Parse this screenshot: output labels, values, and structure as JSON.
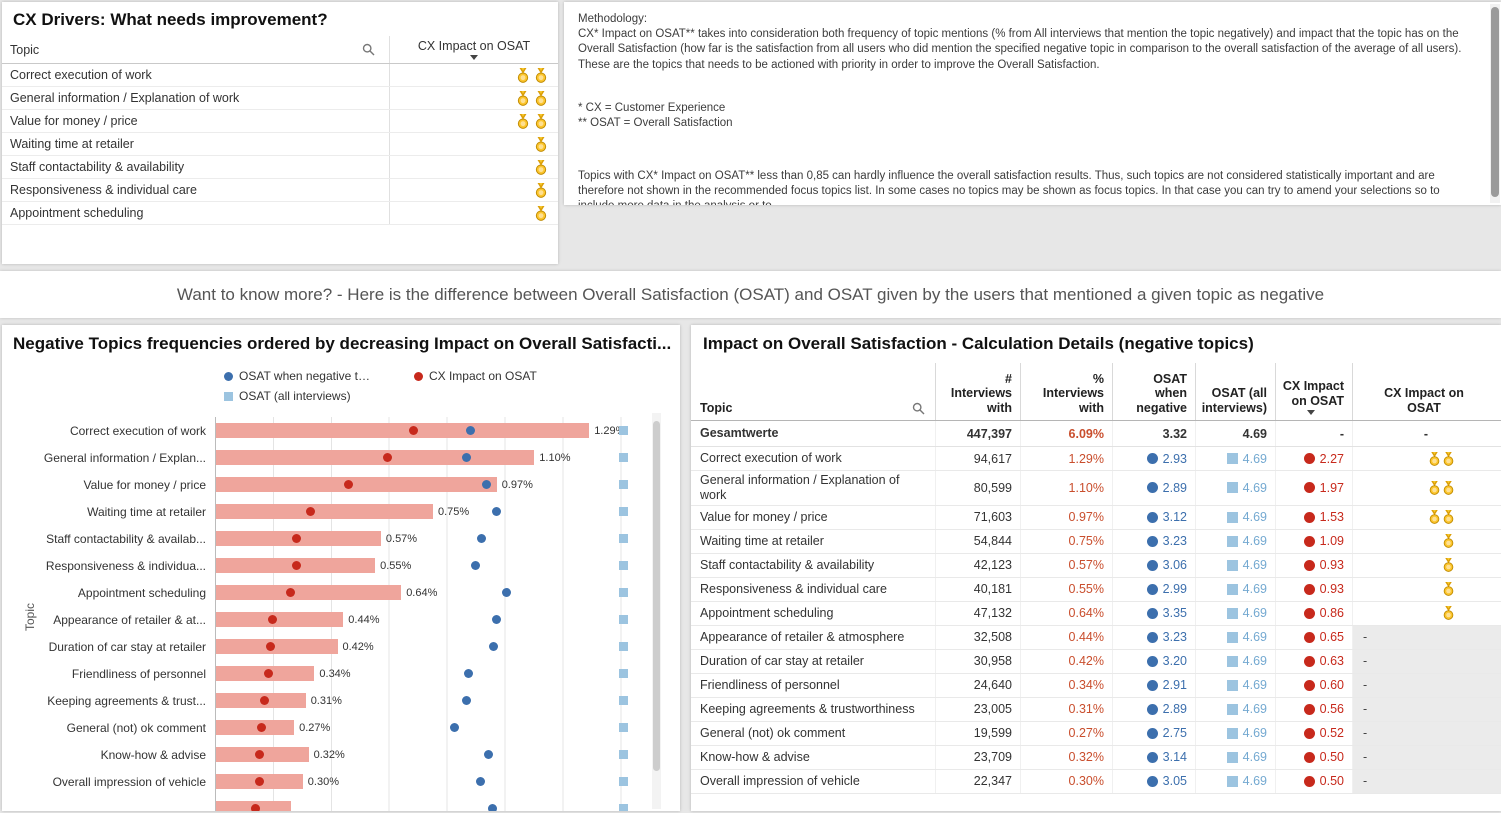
{
  "colors": {
    "bar": "#efa59c",
    "red": "#c7291c",
    "blue": "#3c6fad",
    "lblue": "#9cc4e0",
    "lblue_text": "#74a9d1",
    "orange": "#c94e2d",
    "medal": "#fcc52c"
  },
  "cx_drivers": {
    "title": "CX Drivers: What needs improvement?",
    "topic_header": "Topic",
    "impact_header": "CX Impact on OSAT",
    "rows": [
      {
        "topic": "Correct execution of work",
        "medals": 2
      },
      {
        "topic": "General information / Explanation of work",
        "medals": 2
      },
      {
        "topic": "Value for money / price",
        "medals": 2
      },
      {
        "topic": "Waiting time at retailer",
        "medals": 1
      },
      {
        "topic": "Staff contactability & availability",
        "medals": 1
      },
      {
        "topic": "Responsiveness & individual care",
        "medals": 1
      },
      {
        "topic": "Appointment scheduling",
        "medals": 1
      }
    ]
  },
  "methodology": {
    "heading": "Methodology:",
    "para1": "CX* Impact on OSAT** takes into consideration both frequency of topic mentions (% from All interviews that mention the topic negatively) and impact that the topic has on the Overall Satisfaction (how far is the satisfaction from all users who did mention the specified negative topic in comparison to the overall satisfaction of the average of all users).",
    "para2": "These are the topics that needs to be actioned with priority in order to improve the Overall Satisfaction.",
    "footnote1": "* CX = Customer Experience",
    "footnote2": "** OSAT = Overall Satisfaction",
    "para3": "Topics with CX* Impact on OSAT** less than 0,85 can hardly influence the overall satisfaction results. Thus, such topics are not considered statistically important and are therefore not shown in the recommended focus topics list. In some cases no topics may be shown as focus topics. In that case you can try to amend your selections so to include more data in the analysis or to"
  },
  "banner": "Want to know more? - Here is the difference between Overall Satisfaction (OSAT) and OSAT given by the users that mentioned a given topic as negative",
  "chart": {
    "title": "Negative Topics frequencies ordered by decreasing Impact on Overall Satisfacti...",
    "legend": [
      {
        "label": "OSAT when negative t…",
        "marker": "circle",
        "color": "#3c6fad"
      },
      {
        "label": "CX Impact on OSAT",
        "marker": "circle",
        "color": "#c7291c"
      },
      {
        "label": "OSAT (all interviews)",
        "marker": "square",
        "color": "#9cc4e0"
      }
    ]
  },
  "chart_data": {
    "type": "bar",
    "orientation": "horizontal",
    "title": "Negative Topics frequencies ordered by decreasing Impact on Overall Satisfacti...",
    "ylabel": "Topic",
    "bar_axis_max": 1.5,
    "dot_axis_max": 5,
    "grid": true,
    "legend_position": "top",
    "categories": [
      "Correct execution of work",
      "General information / Explan...",
      "Value for money / price",
      "Waiting time at retailer",
      "Staff contactability & availab...",
      "Responsiveness & individua...",
      "Appointment scheduling",
      "Appearance of retailer & at...",
      "Duration of car stay at retailer",
      "Friendliness of personnel",
      "Keeping agreements & trust...",
      "General (not) ok comment",
      "Know-how & advise",
      "Overall impression of vehicle",
      ""
    ],
    "series": [
      {
        "name": "% Interviews with",
        "unit": "%",
        "values": [
          1.29,
          1.1,
          0.97,
          0.75,
          0.57,
          0.55,
          0.64,
          0.44,
          0.42,
          0.34,
          0.31,
          0.27,
          0.32,
          0.3,
          0.26
        ],
        "labels": [
          "1.29%",
          "1.10%",
          "0.97%",
          "0.75%",
          "0.57%",
          "0.55%",
          "0.64%",
          "0.44%",
          "0.42%",
          "0.34%",
          "0.31%",
          "0.27%",
          "0.32%",
          "0.30%",
          ""
        ]
      },
      {
        "name": "CX Impact on OSAT",
        "values": [
          2.27,
          1.97,
          1.53,
          1.09,
          0.93,
          0.93,
          0.86,
          0.65,
          0.63,
          0.6,
          0.56,
          0.52,
          0.5,
          0.5,
          0.45
        ]
      },
      {
        "name": "OSAT when negative t…",
        "values": [
          2.93,
          2.89,
          3.12,
          3.23,
          3.06,
          2.99,
          3.35,
          3.23,
          3.2,
          2.91,
          2.89,
          2.75,
          3.14,
          3.05,
          3.19
        ]
      },
      {
        "name": "OSAT (all interviews)",
        "values": [
          4.69,
          4.69,
          4.69,
          4.69,
          4.69,
          4.69,
          4.69,
          4.69,
          4.69,
          4.69,
          4.69,
          4.69,
          4.69,
          4.69,
          4.69
        ]
      }
    ]
  },
  "calc_table": {
    "title": "Impact on Overall Satisfaction - Calculation Details (negative topics)",
    "headers": {
      "topic": "Topic",
      "cols": [
        {
          "key": "interviews",
          "lines": [
            "#",
            "Interviews",
            "with"
          ]
        },
        {
          "key": "pct",
          "lines": [
            "%",
            "Interviews",
            "with"
          ]
        },
        {
          "key": "osat_negative",
          "lines": [
            "OSAT",
            "when",
            "negative"
          ]
        },
        {
          "key": "osat_all",
          "lines": [
            "OSAT (all",
            "interviews)"
          ]
        },
        {
          "key": "cx_impact",
          "lines": [
            "CX Impact",
            "on OSAT"
          ],
          "sort": "desc"
        },
        {
          "key": "cx_impact_icons",
          "lines": [
            "CX Impact on",
            "OSAT"
          ],
          "center": true
        }
      ]
    },
    "totals": {
      "topic": "Gesamtwerte",
      "interviews": "447,397",
      "pct": "6.09%",
      "osat_neg": "3.32",
      "osat_all": "4.69",
      "cx_impact": "-",
      "icons": "-"
    },
    "rows": [
      {
        "topic": "Correct execution of work",
        "interviews": "94,617",
        "pct": "1.29%",
        "osat_neg": "2.93",
        "osat_all": "4.69",
        "cx_impact": "2.27",
        "medals": 2
      },
      {
        "topic": "General information / Explanation of work",
        "interviews": "80,599",
        "pct": "1.10%",
        "osat_neg": "2.89",
        "osat_all": "4.69",
        "cx_impact": "1.97",
        "medals": 2
      },
      {
        "topic": "Value for money / price",
        "interviews": "71,603",
        "pct": "0.97%",
        "osat_neg": "3.12",
        "osat_all": "4.69",
        "cx_impact": "1.53",
        "medals": 2
      },
      {
        "topic": "Waiting time at retailer",
        "interviews": "54,844",
        "pct": "0.75%",
        "osat_neg": "3.23",
        "osat_all": "4.69",
        "cx_impact": "1.09",
        "medals": 1
      },
      {
        "topic": "Staff contactability & availability",
        "interviews": "42,123",
        "pct": "0.57%",
        "osat_neg": "3.06",
        "osat_all": "4.69",
        "cx_impact": "0.93",
        "medals": 1
      },
      {
        "topic": "Responsiveness & individual care",
        "interviews": "40,181",
        "pct": "0.55%",
        "osat_neg": "2.99",
        "osat_all": "4.69",
        "cx_impact": "0.93",
        "medals": 1
      },
      {
        "topic": "Appointment scheduling",
        "interviews": "47,132",
        "pct": "0.64%",
        "osat_neg": "3.35",
        "osat_all": "4.69",
        "cx_impact": "0.86",
        "medals": 1
      },
      {
        "topic": "Appearance of retailer & atmosphere",
        "interviews": "32,508",
        "pct": "0.44%",
        "osat_neg": "3.23",
        "osat_all": "4.69",
        "cx_impact": "0.65",
        "medals": 0
      },
      {
        "topic": "Duration of car stay at retailer",
        "interviews": "30,958",
        "pct": "0.42%",
        "osat_neg": "3.20",
        "osat_all": "4.69",
        "cx_impact": "0.63",
        "medals": 0
      },
      {
        "topic": "Friendliness of personnel",
        "interviews": "24,640",
        "pct": "0.34%",
        "osat_neg": "2.91",
        "osat_all": "4.69",
        "cx_impact": "0.60",
        "medals": 0
      },
      {
        "topic": "Keeping agreements & trustworthiness",
        "interviews": "23,005",
        "pct": "0.31%",
        "osat_neg": "2.89",
        "osat_all": "4.69",
        "cx_impact": "0.56",
        "medals": 0
      },
      {
        "topic": "General (not) ok comment",
        "interviews": "19,599",
        "pct": "0.27%",
        "osat_neg": "2.75",
        "osat_all": "4.69",
        "cx_impact": "0.52",
        "medals": 0
      },
      {
        "topic": "Know-how & advise",
        "interviews": "23,709",
        "pct": "0.32%",
        "osat_neg": "3.14",
        "osat_all": "4.69",
        "cx_impact": "0.50",
        "medals": 0
      },
      {
        "topic": "Overall impression of vehicle",
        "interviews": "22,347",
        "pct": "0.30%",
        "osat_neg": "3.05",
        "osat_all": "4.69",
        "cx_impact": "0.50",
        "medals": 0
      }
    ]
  }
}
